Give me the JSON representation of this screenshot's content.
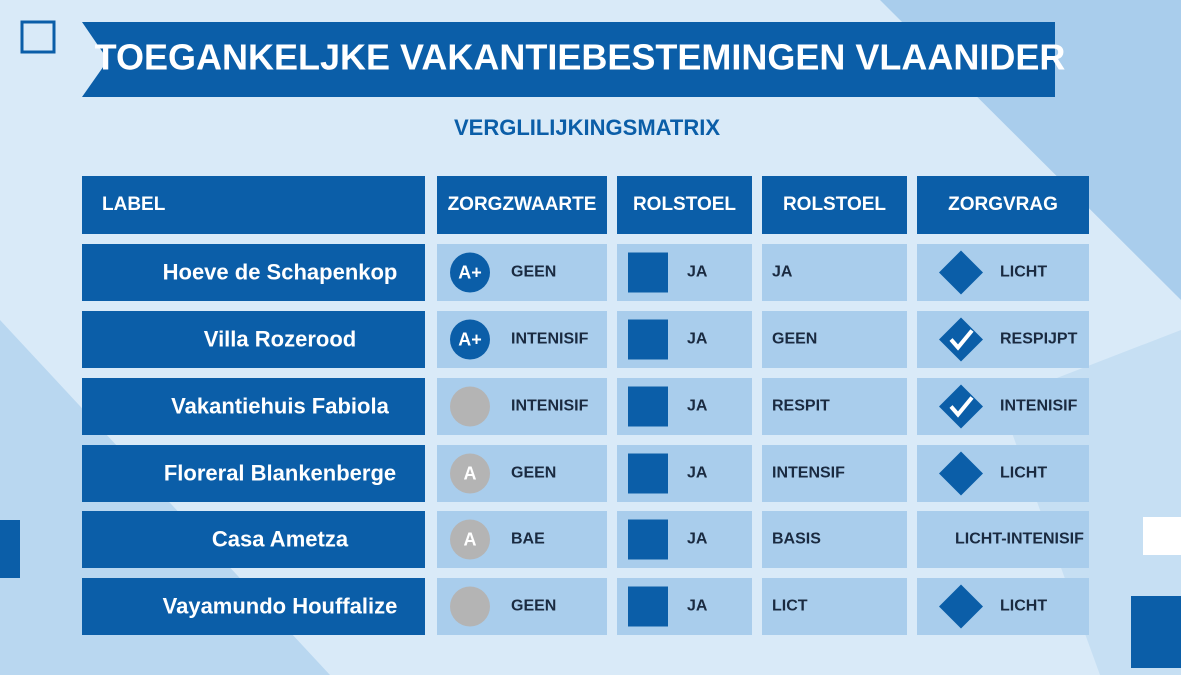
{
  "header": {
    "title": "TOEGANKELJKE VAKANTIEBESTEMINGEN VLAANIDER",
    "subtitle": "VERGLILIJKINGSMATRIX"
  },
  "table": {
    "columns": [
      "LABEL",
      "ZORGZWAARTE",
      "ROLSTOEL",
      "ROLSTOEL",
      "ZORGVRAG"
    ],
    "rows": [
      {
        "label": "Hoeve de Schapenkop",
        "badge": "A+",
        "badge_color": "#0b5ea8",
        "zorgzwaarte": "GEEN",
        "rolstoel_1": "JA",
        "rolstoel_2": "JA",
        "icon": "diamond",
        "zorgvraag": "LICHT"
      },
      {
        "label": "Villa Rozerood",
        "badge": "A+",
        "badge_color": "#0b5ea8",
        "zorgzwaarte": "INTENISIF",
        "rolstoel_1": "JA",
        "rolstoel_2": "GEEN",
        "icon": "check",
        "zorgvraag": "RESPIJPT"
      },
      {
        "label": "Vakantiehuis Fabiola",
        "badge_color": "#b4b4b4",
        "zorgzwaarte": "INTENISIF",
        "rolstoel_1": "JA",
        "rolstoel_2": "RESPIT",
        "icon": "check",
        "zorgvraag": "INTENISIF"
      },
      {
        "label": "Floreral Blankenberge",
        "badge": "A",
        "badge_color": "#b4b4b4",
        "zorgzwaarte": "GEEN",
        "rolstoel_1": "JA",
        "rolstoel_2": "INTENSIF",
        "icon": "diamond",
        "zorgvraag": "LICHT"
      },
      {
        "label": "Casa Ametza",
        "badge": "A",
        "badge_color": "#b4b4b4",
        "zorgzwaarte": "BAE",
        "rolstoel_1": "JA",
        "rolstoel_2": "BASIS",
        "zorgvraag": "LICHT-INTENISIF"
      },
      {
        "label": "Vayamundo Houffalize",
        "badge_color": "#b4b4b4",
        "zorgzwaarte": "GEEN",
        "rolstoel_1": "JA",
        "rolstoel_2": "LICT",
        "icon": "diamond",
        "zorgvraag": "LICHT"
      }
    ]
  }
}
